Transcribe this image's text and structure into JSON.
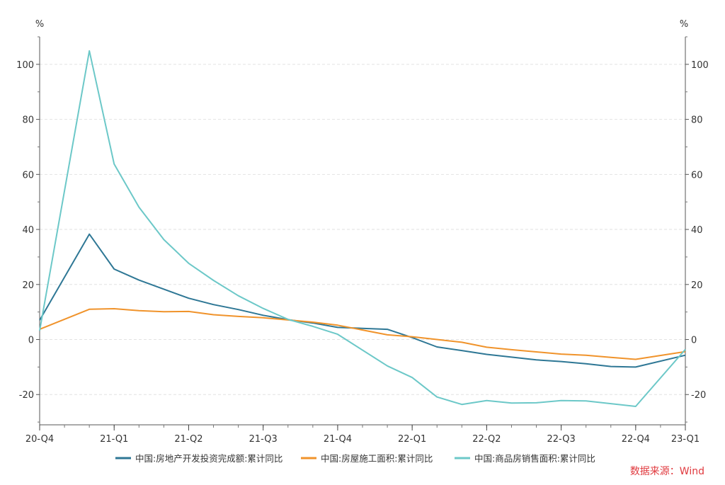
{
  "chart_data": {
    "type": "line",
    "y_unit_left": "%",
    "y_unit_right": "%",
    "ylim": [
      -31,
      110
    ],
    "yticks": [
      -20,
      0,
      20,
      40,
      60,
      80,
      100
    ],
    "x_period_labels": [
      "20-Q4",
      "21-Q1",
      "21-Q2",
      "21-Q3",
      "21-Q4",
      "22-Q1",
      "22-Q2",
      "22-Q3",
      "22-Q4",
      "23-Q1"
    ],
    "x": [
      "2020-12",
      "2021-02",
      "2021-03",
      "2021-04",
      "2021-05",
      "2021-06",
      "2021-07",
      "2021-08",
      "2021-09",
      "2021-10",
      "2021-11",
      "2021-12",
      "2022-02",
      "2022-03",
      "2022-04",
      "2022-05",
      "2022-06",
      "2022-07",
      "2022-08",
      "2022-09",
      "2022-10",
      "2022-11",
      "2022-12",
      "2023-02"
    ],
    "series": [
      {
        "name": "中国:房地产开发投资完成额:累计同比",
        "color": "#2e7795",
        "values": [
          7.0,
          38.3,
          25.6,
          21.6,
          18.3,
          15.0,
          12.7,
          10.9,
          8.8,
          7.2,
          6.0,
          4.4,
          3.7,
          0.7,
          -2.7,
          -4.0,
          -5.4,
          -6.4,
          -7.4,
          -8.0,
          -8.8,
          -9.8,
          -10.0,
          -5.7
        ]
      },
      {
        "name": "中国:房屋施工面积:累计同比",
        "color": "#f0932b",
        "values": [
          3.7,
          11.0,
          11.2,
          10.5,
          10.1,
          10.2,
          9.0,
          8.4,
          7.9,
          7.1,
          6.3,
          5.2,
          1.7,
          1.0,
          0.0,
          -1.0,
          -2.8,
          -3.7,
          -4.5,
          -5.3,
          -5.7,
          -6.5,
          -7.2,
          -4.4
        ]
      },
      {
        "name": "中国:商品房销售面积:累计同比",
        "color": "#6cc8c8",
        "values": [
          3.2,
          104.9,
          63.8,
          48.1,
          36.3,
          27.7,
          21.5,
          15.9,
          11.3,
          7.3,
          4.8,
          1.9,
          -9.6,
          -13.8,
          -20.9,
          -23.6,
          -22.2,
          -23.1,
          -23.0,
          -22.2,
          -22.3,
          -23.3,
          -24.3,
          -3.6
        ]
      }
    ],
    "grid": "horizontal-dashed",
    "legend": "bottom"
  },
  "source": {
    "label": "数据来源：Wind",
    "color": "#e0393e"
  }
}
